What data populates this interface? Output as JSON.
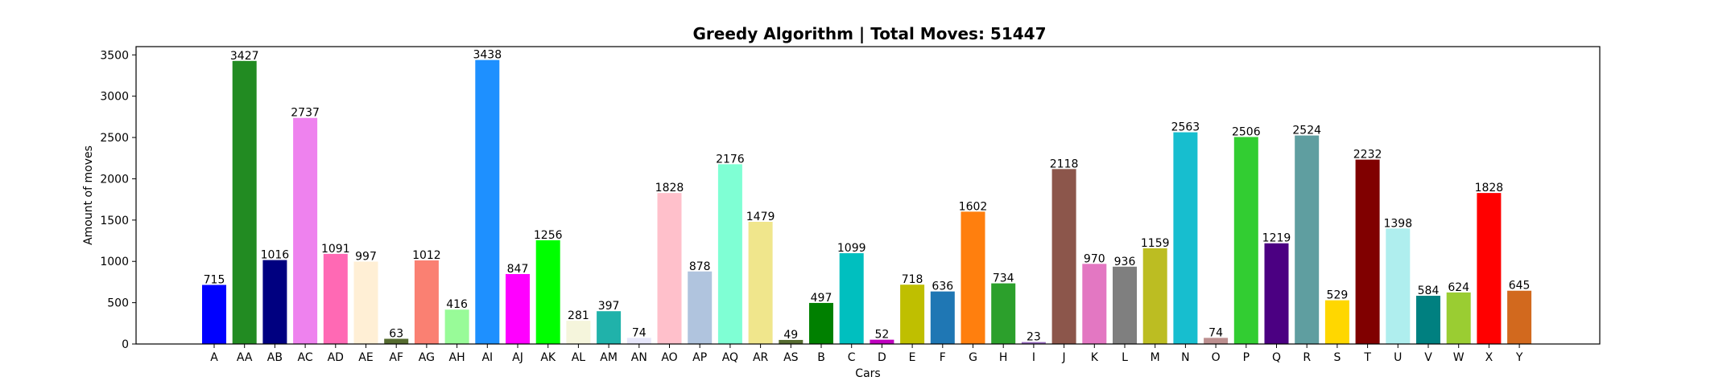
{
  "chart_data": {
    "type": "bar",
    "title": "Greedy Algorithm | Total Moves: 51447",
    "xlabel": "Cars",
    "ylabel": "Amount of moves",
    "ylim": [
      0,
      3600
    ],
    "yticks": [
      0,
      500,
      1000,
      1500,
      2000,
      2500,
      3000,
      3500
    ],
    "grid": false,
    "categories": [
      "A",
      "AA",
      "AB",
      "AC",
      "AD",
      "AE",
      "AF",
      "AG",
      "AH",
      "AI",
      "AJ",
      "AK",
      "AL",
      "AM",
      "AN",
      "AO",
      "AP",
      "AQ",
      "AR",
      "AS",
      "B",
      "C",
      "D",
      "E",
      "F",
      "G",
      "H",
      "I",
      "J",
      "K",
      "L",
      "M",
      "N",
      "O",
      "P",
      "Q",
      "R",
      "S",
      "T",
      "U",
      "V",
      "W",
      "X",
      "Y"
    ],
    "values": [
      715,
      3427,
      1016,
      2737,
      1091,
      997,
      63,
      1012,
      416,
      3438,
      847,
      1256,
      281,
      397,
      74,
      1828,
      878,
      2176,
      1479,
      49,
      497,
      1099,
      52,
      718,
      636,
      1602,
      734,
      23,
      2118,
      970,
      936,
      1159,
      2563,
      74,
      2506,
      1219,
      2524,
      529,
      2232,
      1398,
      584,
      624,
      1828,
      645
    ],
    "colors": [
      "#0000ff",
      "#228b22",
      "#000080",
      "#ee82ee",
      "#ff69b4",
      "#ffefd5",
      "#556b2f",
      "#fa8072",
      "#98fb98",
      "#1e90ff",
      "#ff00ff",
      "#00ff00",
      "#f5f5dc",
      "#20b2aa",
      "#e6e6fa",
      "#ffc0cb",
      "#b0c4de",
      "#7fffd4",
      "#f0e68c",
      "#556b2f",
      "#008000",
      "#00bfbf",
      "#bf00bf",
      "#bfbf00",
      "#1f77b4",
      "#ff7f0e",
      "#2ca02c",
      "#9467bd",
      "#8c564b",
      "#e377c2",
      "#7f7f7f",
      "#bcbd22",
      "#17becf",
      "#bc8f8f",
      "#32cd32",
      "#4b0082",
      "#5f9ea0",
      "#ffd700",
      "#800000",
      "#afeeee",
      "#008080",
      "#9acd32",
      "#ff0000",
      "#d2691e"
    ]
  }
}
